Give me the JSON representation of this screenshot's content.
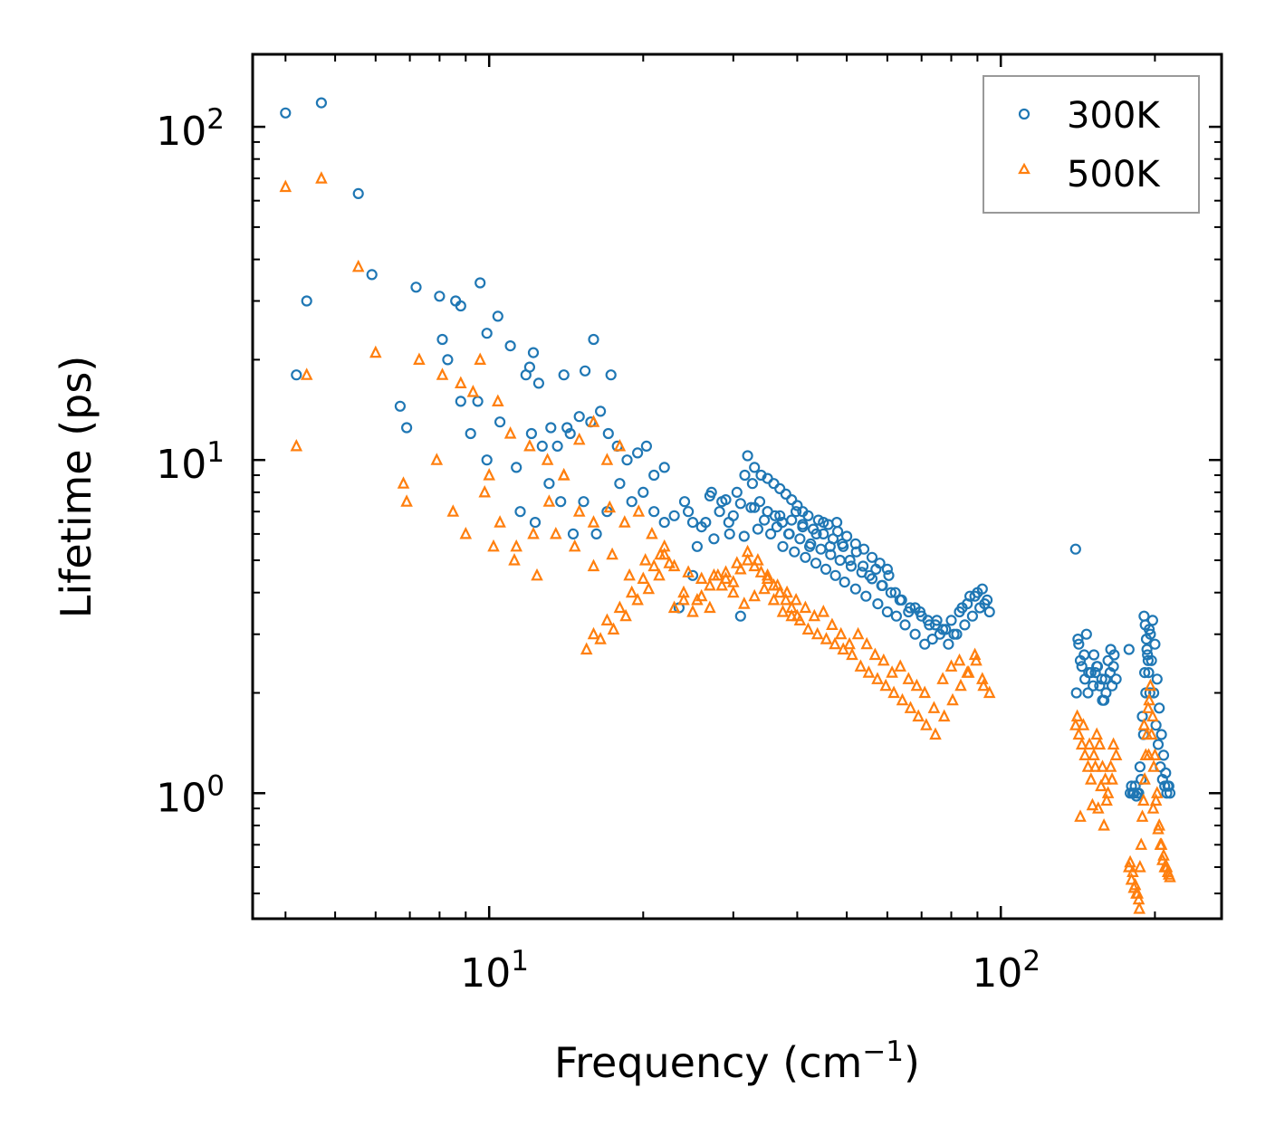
{
  "chart_data": {
    "type": "scatter",
    "xscale": "log",
    "yscale": "log",
    "xlim": [
      3.45,
      270
    ],
    "ylim": [
      0.42,
      165
    ],
    "xlabel": "Frequency (cm",
    "xlabel_exp": "−1",
    "xlabel_suffix": ")",
    "ylabel": "Lifetime (ps)",
    "xticks": [
      {
        "value": 10,
        "base": "10",
        "exp": "1"
      },
      {
        "value": 100,
        "base": "10",
        "exp": "2"
      }
    ],
    "yticks": [
      {
        "value": 1,
        "base": "10",
        "exp": "0"
      },
      {
        "value": 10,
        "base": "10",
        "exp": "1"
      },
      {
        "value": 100,
        "base": "10",
        "exp": "2"
      }
    ],
    "legend_position": "top-right",
    "series": [
      {
        "name": "300K",
        "marker": "circle",
        "color": "#1f77b4",
        "x": [
          4.0,
          4.7,
          5.55,
          4.4,
          4.2,
          5.9,
          7.2,
          8.0,
          8.6,
          9.6,
          10.4,
          6.7,
          6.9,
          8.1,
          8.3,
          8.8,
          9.5,
          9.9,
          11.0,
          11.8,
          12.0,
          12.2,
          12.5,
          14.0,
          14.2,
          15.4,
          16.0,
          17.3,
          17.1,
          9.2,
          8.8,
          9.9,
          10.5,
          11.3,
          12.1,
          12.7,
          13.2,
          13.6,
          14.4,
          15.0,
          15.8,
          16.5,
          17.8,
          18.6,
          19.5,
          20.3,
          21.0,
          22.0,
          11.5,
          12.3,
          13.1,
          13.8,
          14.6,
          15.3,
          16.2,
          17.0,
          18.0,
          19.0,
          20.0,
          21.0,
          22.0,
          23.0,
          24.1,
          25.0,
          26.0,
          27.2,
          28.2,
          29.4,
          30.5,
          31.6,
          32.7,
          33.8,
          35.0,
          36.2,
          37.4,
          38.6,
          39.8,
          41.0,
          42.3,
          43.6,
          45.0,
          46.4,
          47.8,
          49.2,
          50.7,
          52.2,
          53.8,
          55.4,
          57.0,
          58.7,
          60.4,
          62.2,
          64.0,
          66.0,
          68.0,
          70.0,
          72.5,
          75.0,
          78.0,
          81.0,
          84.0,
          87.0,
          90.0,
          93.0,
          95.0,
          24.5,
          26.5,
          28.5,
          30.0,
          32.5,
          34.5,
          36.5,
          38.5,
          40.5,
          42.5,
          44.5,
          46.5,
          48.5,
          51.0,
          53.5,
          56.0,
          58.5,
          61.0,
          63.5,
          66.5,
          69.5,
          72.0,
          74.5,
          77.0,
          80.0,
          83.0,
          86.0,
          89.0,
          92.0,
          23.5,
          25.5,
          27.5,
          29.5,
          31.5,
          33.5,
          35.5,
          37.5,
          39.5,
          41.5,
          43.5,
          45.5,
          47.5,
          49.5,
          52.0,
          54.5,
          57.5,
          60.0,
          62.5,
          65.0,
          68.0,
          71.0,
          73.5,
          76.0,
          79.0,
          82.0,
          85.0,
          88.0,
          91.0,
          94.0,
          31.0,
          32.0,
          33.0,
          34.0,
          35.0,
          36.0,
          37.0,
          38.0,
          39.0,
          40.0,
          41.0,
          42.0,
          44.0,
          46.0,
          48.0,
          50.0,
          52.0,
          54.0,
          56.0,
          58.0,
          60.0,
          25.0,
          27.0,
          29.0,
          31.0,
          33.0,
          35.0,
          37.0,
          39.0,
          41.0,
          43.0,
          45.0,
          47.0,
          49.0,
          140.0,
          142.0,
          144.0,
          146.0,
          148.0,
          150.0,
          152.0,
          154.0,
          156.0,
          158.0,
          160.0,
          162.0,
          164.0,
          166.0,
          168.0,
          140.5,
          143.0,
          145.5,
          148.5,
          151.5,
          154.5,
          157.5,
          160.5,
          163.5,
          166.5,
          141.5,
          147.0,
          153.0,
          159.0,
          165.0,
          178.0,
          180.0,
          182.0,
          184.0,
          186.0,
          188.0,
          190.0,
          192.0,
          194.0,
          196.0,
          198.0,
          200.0,
          202.0,
          204.0,
          206.0,
          208.0,
          210.0,
          212.0,
          214.0,
          179.0,
          181.0,
          183.0,
          185.0,
          187.0,
          189.0,
          191.0,
          193.0,
          195.0,
          197.0,
          199.0,
          201.0,
          203.0,
          205.0,
          207.0,
          209.0,
          211.0,
          213.0,
          190.5,
          191.5,
          192.5,
          193.5,
          194.5,
          195.5
        ],
        "y": [
          110,
          118,
          63,
          30,
          18,
          36,
          33,
          31,
          30,
          34,
          27,
          14.5,
          12.5,
          23,
          20,
          29,
          15,
          24,
          22,
          18,
          19,
          21,
          17,
          18,
          12.5,
          18.5,
          23,
          18,
          12,
          12,
          15,
          10,
          13,
          9.5,
          12,
          11,
          12.5,
          11,
          12,
          13.5,
          13,
          14,
          11,
          10,
          10.5,
          11,
          9,
          9.5,
          7,
          6.5,
          8.5,
          7.5,
          6,
          7.5,
          6,
          7,
          8.5,
          7.5,
          8,
          7,
          6.5,
          6.8,
          7.5,
          6.5,
          6.3,
          8,
          7,
          6.5,
          8,
          9,
          8.5,
          7.5,
          7,
          6.8,
          6.5,
          6,
          7,
          6.3,
          5.5,
          6,
          6.5,
          5.5,
          6.5,
          5.5,
          5,
          5.3,
          4.8,
          4.5,
          4.7,
          4.2,
          4.5,
          4,
          3.8,
          3.5,
          3.6,
          3.4,
          3.2,
          3.3,
          3.1,
          3.0,
          3.6,
          3.9,
          4.0,
          3.7,
          3.5,
          7,
          6.5,
          7.5,
          6.8,
          7.2,
          6.6,
          6.3,
          6.0,
          5.8,
          5.6,
          5.4,
          5.2,
          5.0,
          4.8,
          4.6,
          4.4,
          4.2,
          4.0,
          3.8,
          3.6,
          3.5,
          3.3,
          3.2,
          3.1,
          3.3,
          3.5,
          3.7,
          3.9,
          4.1,
          3.6,
          5.5,
          5.8,
          6.0,
          5.9,
          6.2,
          6.0,
          5.5,
          5.3,
          5.1,
          4.9,
          4.7,
          4.5,
          4.3,
          4.1,
          3.9,
          3.7,
          3.5,
          3.4,
          3.2,
          3.0,
          2.8,
          2.9,
          3.0,
          2.8,
          3.0,
          3.2,
          3.4,
          3.6,
          3.8,
          3.4,
          10.3,
          9.5,
          9.0,
          8.8,
          8.5,
          8.2,
          7.9,
          7.6,
          7.3,
          7.0,
          6.8,
          6.6,
          6.4,
          6.1,
          5.9,
          5.6,
          5.4,
          5.1,
          4.9,
          4.7,
          4.5,
          7.8,
          7.6,
          7.4,
          7.2,
          7.0,
          6.8,
          6.6,
          6.4,
          6.2,
          6.0,
          5.8,
          5.6,
          5.4,
          2.8,
          2.4,
          2.2,
          2.0,
          2.3,
          2.6,
          2.4,
          2.1,
          1.9,
          2.2,
          2.5,
          2.7,
          2.4,
          2.2,
          2.0,
          2.5,
          2.6,
          2.3,
          2.1,
          2.4,
          2.2,
          2.0,
          2.3,
          2.6,
          2.9,
          3.0,
          2.3,
          1.9,
          2.1,
          2.7,
          1.05,
          1.0,
          0.98,
          1.0,
          1.1,
          1.5,
          2.0,
          2.5,
          3.0,
          3.3,
          2.8,
          2.2,
          1.8,
          1.5,
          1.3,
          1.15,
          1.05,
          1.0,
          1.0,
          1.0,
          1.05,
          1.0,
          1.2,
          1.7,
          2.3,
          2.7,
          3.1,
          2.5,
          2.0,
          1.6,
          1.4,
          1.2,
          1.1,
          1.05,
          1.0,
          1.05,
          3.4,
          3.2,
          2.9,
          2.6,
          2.3,
          2.0
        ]
      },
      {
        "name": "500K",
        "marker": "triangle",
        "color": "#ff7f0e",
        "x": [
          4.0,
          4.7,
          5.55,
          4.4,
          4.2,
          6.0,
          7.3,
          8.1,
          8.8,
          9.6,
          10.4,
          6.8,
          6.9,
          7.9,
          8.5,
          9.3,
          10.0,
          11.0,
          12.0,
          13.0,
          14.0,
          15.0,
          16.0,
          17.0,
          18.0,
          9.0,
          9.8,
          10.5,
          11.3,
          12.2,
          13.1,
          14.0,
          15.0,
          16.0,
          17.2,
          18.4,
          19.6,
          20.8,
          22.0,
          10.2,
          11.2,
          12.4,
          13.5,
          14.7,
          16.0,
          17.4,
          18.8,
          20.2,
          21.6,
          23.0,
          24.5,
          26.0,
          27.5,
          29.0,
          30.5,
          32.0,
          33.5,
          35.0,
          36.6,
          38.2,
          39.8,
          41.5,
          43.2,
          45.0,
          46.8,
          48.7,
          50.6,
          52.6,
          54.7,
          56.8,
          59.0,
          61.3,
          63.6,
          66.0,
          68.5,
          71.0,
          74.0,
          77.0,
          80.0,
          83.0,
          86.0,
          89.0,
          92.0,
          95.0,
          24.0,
          25.5,
          27.0,
          28.5,
          30.0,
          31.5,
          33.0,
          34.5,
          36.0,
          37.5,
          39.0,
          40.5,
          42.0,
          43.8,
          45.6,
          47.4,
          49.2,
          51.2,
          53.2,
          55.2,
          57.4,
          59.6,
          61.8,
          64.2,
          66.6,
          69.0,
          71.5,
          74.5,
          77.5,
          80.5,
          83.5,
          86.5,
          89.5,
          92.5,
          23.0,
          24.0,
          25.0,
          26.0,
          27.0,
          28.0,
          29.0,
          30.0,
          31.0,
          32.0,
          33.0,
          34.0,
          35.0,
          36.0,
          37.0,
          38.0,
          39.0,
          40.0,
          16.0,
          17.0,
          18.0,
          19.0,
          20.0,
          21.0,
          22.0,
          15.5,
          16.5,
          17.5,
          18.5,
          19.5,
          20.5,
          21.5,
          22.5,
          140.0,
          142.0,
          144.0,
          146.0,
          148.0,
          150.0,
          152.0,
          154.0,
          156.0,
          158.0,
          160.0,
          162.0,
          164.0,
          166.0,
          168.0,
          141.0,
          145.0,
          149.0,
          153.0,
          157.0,
          161.0,
          165.0,
          143.0,
          151.0,
          159.0,
          155.0,
          178.0,
          180.0,
          182.0,
          184.0,
          186.0,
          188.0,
          190.0,
          192.0,
          194.0,
          196.0,
          198.0,
          200.0,
          202.0,
          204.0,
          206.0,
          208.0,
          210.0,
          212.0,
          214.0,
          179.0,
          181.0,
          183.0,
          185.0,
          187.0,
          189.0,
          191.0,
          193.0,
          195.0,
          197.0,
          199.0,
          201.0,
          203.0,
          205.0,
          207.0,
          209.0,
          211.0,
          213.0,
          186.5,
          190.5,
          194.5,
          198.5
        ],
        "y": [
          66,
          70,
          38,
          18,
          11,
          21,
          20,
          18,
          17,
          20,
          15,
          8.5,
          7.5,
          10,
          7,
          16,
          9,
          12,
          11,
          10,
          9,
          11.5,
          13,
          10,
          11,
          6,
          8,
          6.5,
          5.5,
          6,
          7.5,
          9,
          7,
          6.5,
          7.2,
          6.5,
          7,
          6,
          5.5,
          5.5,
          5.0,
          4.5,
          6,
          5.5,
          4.8,
          5.2,
          4.5,
          5.0,
          5.2,
          4.8,
          4.6,
          4.4,
          4.5,
          4.6,
          4.9,
          5.3,
          5.0,
          4.5,
          4.2,
          4.0,
          3.8,
          3.6,
          3.4,
          3.5,
          3.2,
          3.0,
          2.8,
          3.0,
          2.8,
          2.6,
          2.5,
          2.3,
          2.4,
          2.2,
          2.1,
          2.0,
          1.8,
          2.2,
          2.4,
          2.5,
          2.3,
          2.6,
          2.2,
          2.0,
          4.0,
          3.8,
          3.6,
          4.2,
          4.0,
          3.7,
          3.9,
          4.1,
          3.8,
          3.5,
          3.4,
          3.3,
          3.1,
          3.0,
          2.9,
          2.8,
          2.7,
          2.6,
          2.4,
          2.3,
          2.2,
          2.1,
          2.0,
          1.9,
          1.8,
          1.7,
          1.6,
          1.5,
          1.7,
          1.9,
          2.1,
          2.3,
          2.5,
          2.1,
          3.6,
          3.8,
          3.5,
          3.9,
          4.2,
          4.5,
          4.4,
          4.3,
          4.7,
          5.0,
          4.8,
          4.6,
          4.4,
          4.2,
          4.0,
          3.8,
          3.6,
          3.4,
          3.0,
          3.3,
          3.6,
          4.0,
          4.4,
          4.8,
          5.2,
          2.7,
          2.9,
          3.1,
          3.4,
          3.8,
          4.1,
          4.5,
          4.9,
          1.6,
          1.5,
          1.4,
          1.3,
          1.2,
          1.1,
          1.3,
          1.5,
          1.4,
          1.2,
          1.1,
          1.0,
          1.2,
          1.4,
          1.3,
          1.7,
          1.6,
          1.4,
          1.2,
          1.05,
          0.95,
          1.1,
          0.85,
          0.92,
          0.8,
          0.9,
          0.6,
          0.55,
          0.52,
          0.5,
          0.48,
          0.7,
          0.95,
          1.3,
          1.8,
          2.1,
          1.7,
          1.3,
          1.0,
          0.8,
          0.7,
          0.65,
          0.6,
          0.58,
          0.56,
          0.62,
          0.58,
          0.53,
          0.5,
          0.6,
          0.85,
          1.1,
          1.5,
          1.9,
          1.5,
          1.2,
          0.95,
          0.78,
          0.7,
          0.63,
          0.6,
          0.6,
          0.57,
          0.45,
          1.6,
          1.3,
          0.9
        ]
      }
    ]
  }
}
